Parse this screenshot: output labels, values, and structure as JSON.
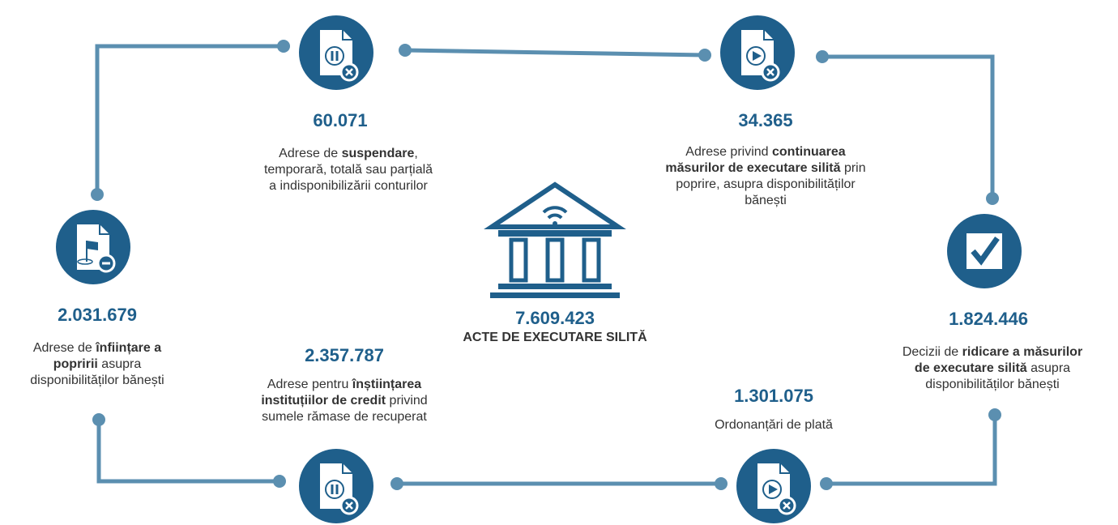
{
  "total": {
    "value": "7.609.423",
    "label": "ACTE DE EXECUTARE SILITĂ"
  },
  "nodes": [
    {
      "value": "60.071",
      "description": [
        [
          {
            "text": "Adrese de ",
            "bold": false
          },
          {
            "text": "suspendare",
            "bold": true
          },
          {
            "text": ",",
            "bold": false
          }
        ],
        [
          {
            "text": "temporară, totală sau parțială",
            "bold": false
          }
        ],
        [
          {
            "text": "a indisponibilizării conturilor",
            "bold": false
          }
        ]
      ]
    },
    {
      "value": "34.365",
      "description": [
        [
          {
            "text": "Adrese privind ",
            "bold": false
          },
          {
            "text": "continuarea",
            "bold": true
          }
        ],
        [
          {
            "text": "măsurilor de executare silită",
            "bold": true
          },
          {
            "text": " prin",
            "bold": false
          }
        ],
        [
          {
            "text": "poprire, asupra disponibilităților",
            "bold": false
          }
        ],
        [
          {
            "text": "bănești",
            "bold": false
          }
        ]
      ]
    },
    {
      "value": "2.031.679",
      "description": [
        [
          {
            "text": "Adrese de ",
            "bold": false
          },
          {
            "text": "înființare a",
            "bold": true
          }
        ],
        [
          {
            "text": "popririi",
            "bold": true
          },
          {
            "text": " asupra",
            "bold": false
          }
        ],
        [
          {
            "text": "disponibilităților bănești",
            "bold": false
          }
        ]
      ]
    },
    {
      "value": "1.824.446",
      "description": [
        [
          {
            "text": "Decizii de ",
            "bold": false
          },
          {
            "text": "ridicare a măsurilor",
            "bold": true
          }
        ],
        [
          {
            "text": "de executare silită",
            "bold": true
          },
          {
            "text": " asupra",
            "bold": false
          }
        ],
        [
          {
            "text": "disponibilităților bănești",
            "bold": false
          }
        ]
      ]
    },
    {
      "value": "2.357.787",
      "description": [
        [
          {
            "text": "Adrese pentru ",
            "bold": false
          },
          {
            "text": "înștiințarea",
            "bold": true
          }
        ],
        [
          {
            "text": "instituțiilor de credit",
            "bold": true
          },
          {
            "text": " privind",
            "bold": false
          }
        ],
        [
          {
            "text": "sumele rămase de recuperat",
            "bold": false
          }
        ]
      ]
    },
    {
      "value": "1.301.075",
      "description": [
        [
          {
            "text": "Ordonanțări de plată",
            "bold": false
          }
        ]
      ]
    }
  ]
}
